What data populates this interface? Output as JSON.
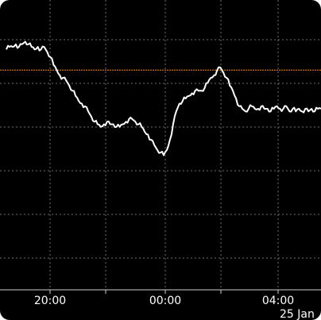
{
  "chart_data": {
    "type": "line",
    "title": "",
    "xlabel": "",
    "ylabel": "",
    "x_ticks": [
      "20:00",
      "00:00",
      "04:00"
    ],
    "date_label": "25 Jan",
    "grid": true,
    "colors": {
      "background": "#000000",
      "line": "#ffffff",
      "reference": "#ff8c00",
      "grid": "#6f6f6f"
    },
    "xlim": [
      0,
      100
    ],
    "ylim": [
      0,
      100
    ],
    "reference_level": 79,
    "series": [
      {
        "x": [
          0,
          1,
          2,
          3,
          4,
          5,
          6,
          7,
          8,
          9,
          10,
          11,
          12,
          13,
          14,
          15,
          16,
          17,
          18,
          19,
          20,
          21,
          22,
          23,
          24,
          25,
          26,
          27,
          28,
          29,
          30,
          31,
          32,
          33,
          34,
          35,
          36,
          37,
          38,
          39,
          40,
          41,
          42,
          43,
          44,
          45,
          46,
          47,
          48,
          49,
          50,
          51,
          52,
          53,
          54,
          55,
          56,
          57,
          58,
          59,
          60,
          61,
          62,
          63,
          64,
          65,
          66,
          67,
          68,
          69,
          70,
          71,
          72,
          73,
          74,
          75,
          76,
          77,
          78,
          79,
          80,
          81,
          82,
          83,
          84,
          85,
          86,
          87,
          88,
          89,
          90,
          91,
          92,
          93,
          94,
          95,
          96,
          97,
          98,
          99,
          100
        ],
        "values": [
          87,
          88,
          88,
          89,
          88,
          89,
          90,
          89,
          88,
          87,
          88,
          87,
          88,
          86,
          84,
          81,
          79,
          77,
          76,
          75,
          73,
          71,
          69,
          67,
          66,
          65,
          63,
          61,
          59,
          58,
          57,
          58,
          59,
          58,
          58,
          57,
          57,
          58,
          59,
          60,
          60,
          59,
          58,
          57,
          55,
          54,
          52,
          50,
          48,
          47,
          46,
          48,
          52,
          58,
          63,
          66,
          67,
          68,
          69,
          70,
          71,
          71,
          71,
          72,
          74,
          76,
          77,
          79,
          80,
          78,
          76,
          73,
          71,
          68,
          65,
          64,
          63,
          64,
          65,
          64,
          64,
          65,
          64,
          64,
          63,
          64,
          65,
          64,
          64,
          65,
          63,
          64,
          63,
          64,
          63,
          64,
          63,
          64,
          63,
          64,
          64
        ]
      }
    ]
  }
}
